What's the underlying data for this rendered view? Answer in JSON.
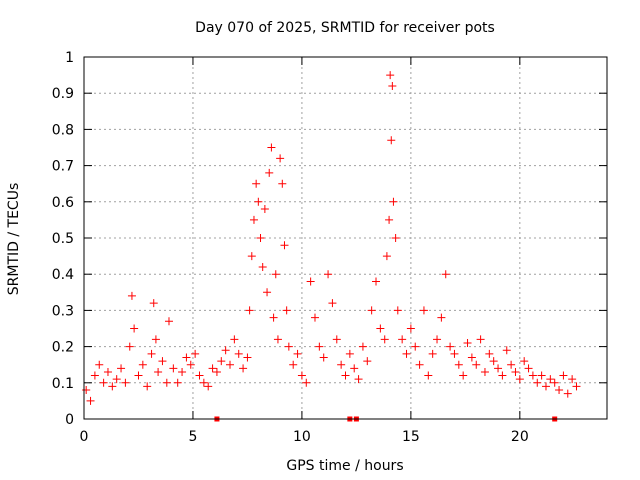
{
  "chart_data": {
    "type": "scatter",
    "title": "Day 070 of 2025, SRMTID for receiver pots",
    "xlabel": "GPS time / hours",
    "ylabel": "SRMTID / TECUs",
    "xlim": [
      0,
      24
    ],
    "ylim": [
      0,
      1
    ],
    "xticks": [
      0,
      5,
      10,
      15,
      20
    ],
    "yticks": [
      0,
      0.1,
      0.2,
      0.3,
      0.4,
      0.5,
      0.6,
      0.7,
      0.8,
      0.9,
      1
    ],
    "grid": true,
    "marker_color": "#ff0000",
    "series": [
      {
        "name": "SRMTID",
        "marker": "plus",
        "x": [
          0.1,
          0.3,
          0.5,
          0.7,
          0.9,
          1.1,
          1.3,
          1.5,
          1.7,
          1.9,
          2.1,
          2.2,
          2.3,
          2.5,
          2.7,
          2.9,
          3.1,
          3.2,
          3.3,
          3.4,
          3.6,
          3.8,
          3.9,
          4.1,
          4.3,
          4.5,
          4.7,
          4.9,
          5.1,
          5.3,
          5.5,
          5.7,
          5.9,
          6.1,
          6.3,
          6.5,
          6.7,
          6.9,
          7.1,
          7.3,
          7.5,
          7.6,
          7.7,
          7.8,
          7.9,
          8.0,
          8.1,
          8.2,
          8.3,
          8.4,
          8.5,
          8.6,
          8.7,
          8.8,
          8.9,
          9.0,
          9.1,
          9.2,
          9.3,
          9.4,
          9.6,
          9.8,
          10.0,
          10.2,
          10.4,
          10.6,
          10.8,
          11.0,
          11.2,
          11.4,
          11.6,
          11.8,
          12.0,
          12.2,
          12.4,
          12.6,
          12.8,
          13.0,
          13.2,
          13.4,
          13.6,
          13.8,
          13.9,
          14.0,
          14.05,
          14.1,
          14.15,
          14.2,
          14.3,
          14.4,
          14.6,
          14.8,
          15.0,
          15.2,
          15.4,
          15.6,
          15.8,
          16.0,
          16.2,
          16.4,
          16.6,
          16.8,
          17.0,
          17.2,
          17.4,
          17.6,
          17.8,
          18.0,
          18.2,
          18.4,
          18.6,
          18.8,
          19.0,
          19.2,
          19.4,
          19.6,
          19.8,
          20.0,
          20.2,
          20.4,
          20.6,
          20.8,
          21.0,
          21.2,
          21.4,
          21.6,
          21.8,
          22.0,
          22.2,
          22.4,
          22.6
        ],
        "y": [
          0.08,
          0.05,
          0.12,
          0.15,
          0.1,
          0.13,
          0.09,
          0.11,
          0.14,
          0.1,
          0.2,
          0.34,
          0.25,
          0.12,
          0.15,
          0.09,
          0.18,
          0.32,
          0.22,
          0.13,
          0.16,
          0.1,
          0.27,
          0.14,
          0.1,
          0.13,
          0.17,
          0.15,
          0.18,
          0.12,
          0.1,
          0.09,
          0.14,
          0.13,
          0.16,
          0.19,
          0.15,
          0.22,
          0.18,
          0.14,
          0.17,
          0.3,
          0.45,
          0.55,
          0.65,
          0.6,
          0.5,
          0.42,
          0.58,
          0.35,
          0.68,
          0.75,
          0.28,
          0.4,
          0.22,
          0.72,
          0.65,
          0.48,
          0.3,
          0.2,
          0.15,
          0.18,
          0.12,
          0.1,
          0.38,
          0.28,
          0.2,
          0.17,
          0.4,
          0.32,
          0.22,
          0.15,
          0.12,
          0.18,
          0.14,
          0.11,
          0.2,
          0.16,
          0.3,
          0.38,
          0.25,
          0.22,
          0.45,
          0.55,
          0.95,
          0.77,
          0.92,
          0.6,
          0.5,
          0.3,
          0.22,
          0.18,
          0.25,
          0.2,
          0.15,
          0.3,
          0.12,
          0.18,
          0.22,
          0.28,
          0.4,
          0.2,
          0.18,
          0.15,
          0.12,
          0.21,
          0.17,
          0.15,
          0.22,
          0.13,
          0.18,
          0.16,
          0.14,
          0.12,
          0.19,
          0.15,
          0.13,
          0.11,
          0.16,
          0.14,
          0.12,
          0.1,
          0.12,
          0.09,
          0.11,
          0.1,
          0.08,
          0.12,
          0.07,
          0.11,
          0.09
        ],
        "marker_points_x": [
          6.1,
          12.2,
          12.5,
          21.6
        ],
        "marker_points_y": [
          0,
          0,
          0,
          0
        ]
      }
    ]
  }
}
